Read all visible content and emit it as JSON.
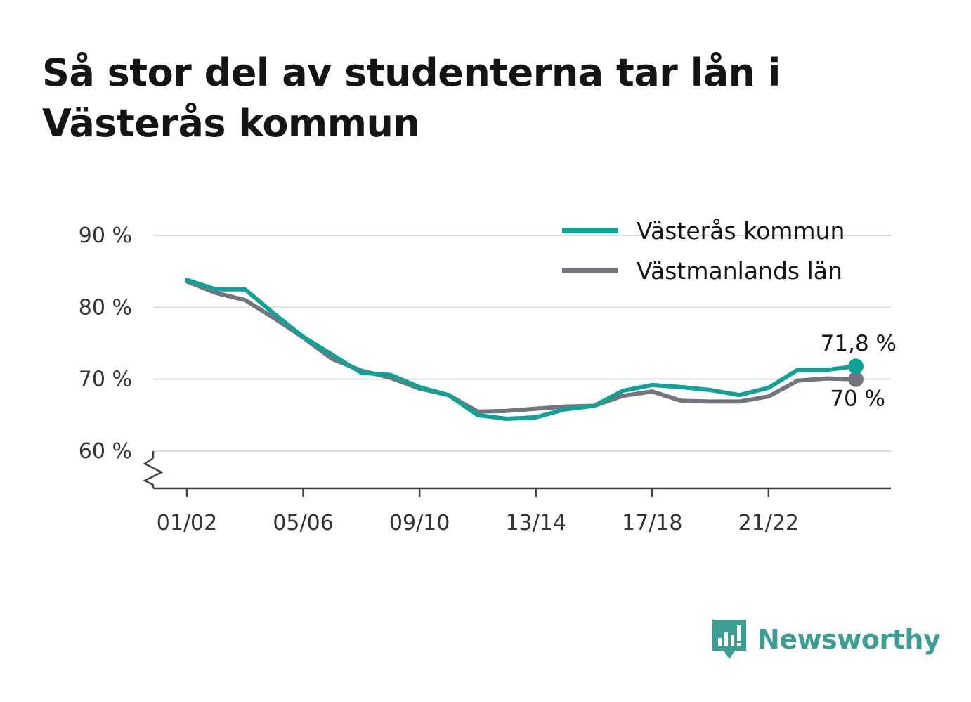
{
  "title": "Så stor del av studenterna tar lån i Västerås kommun",
  "brand": {
    "name": "Newsworthy",
    "logo_icon": "bar-chart-speech-bubble-icon",
    "color": "#3c9d92"
  },
  "chart_data": {
    "type": "line",
    "title": "Så stor del av studenterna tar lån i Västerås kommun",
    "xlabel": "",
    "ylabel": "",
    "categories": [
      "01/02",
      "02/03",
      "03/04",
      "04/05",
      "05/06",
      "06/07",
      "07/08",
      "08/09",
      "09/10",
      "10/11",
      "11/12",
      "12/13",
      "13/14",
      "14/15",
      "15/16",
      "16/17",
      "17/18",
      "18/19",
      "19/20",
      "20/21",
      "21/22",
      "22/23",
      "23/24",
      "24/25"
    ],
    "x_tick_labels": [
      "01/02",
      "05/06",
      "09/10",
      "13/14",
      "17/18",
      "21/22"
    ],
    "y_ticks": [
      60,
      70,
      80,
      90
    ],
    "y_tick_labels": [
      "60 %",
      "70 %",
      "80 %",
      "90 %"
    ],
    "ylim": [
      55,
      90
    ],
    "y_axis_break": true,
    "grid": true,
    "legend_position": "top-right",
    "series": [
      {
        "name": "Västerås kommun",
        "color": "#0fa398",
        "values": [
          83.8,
          82.5,
          82.5,
          79.1,
          75.9,
          73.4,
          70.9,
          70.6,
          68.9,
          67.8,
          65.0,
          64.5,
          64.7,
          65.8,
          66.3,
          68.4,
          69.2,
          68.9,
          68.5,
          67.8,
          68.8,
          71.3,
          71.3,
          71.8
        ],
        "end_label": "71,8 %"
      },
      {
        "name": "Västmanlands län",
        "color": "#74747e",
        "values": [
          83.6,
          82.0,
          81.0,
          78.5,
          75.8,
          72.8,
          71.2,
          70.2,
          68.7,
          67.8,
          65.5,
          65.6,
          65.9,
          66.2,
          66.3,
          67.7,
          68.3,
          67.0,
          66.9,
          66.9,
          67.6,
          69.8,
          70.1,
          70.0
        ],
        "end_label": "70 %"
      }
    ]
  }
}
